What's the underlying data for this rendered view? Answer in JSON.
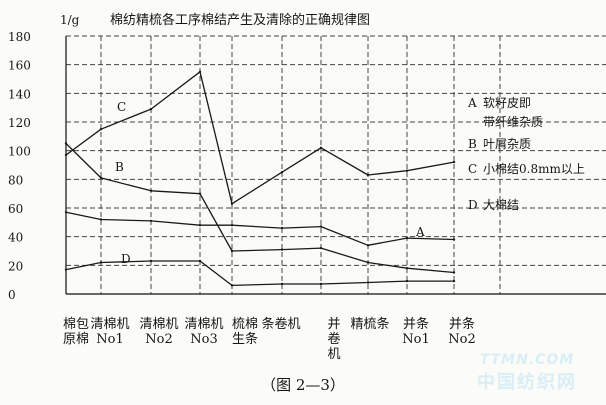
{
  "chart_data": {
    "type": "line",
    "title": "棉纺精梳各工序棉结产生及清除的正确规律图",
    "ylabel": "1/g",
    "yticks": [
      0,
      20,
      40,
      60,
      80,
      100,
      120,
      140,
      160,
      180
    ],
    "ylim": [
      0,
      180
    ],
    "grid": true,
    "categories": [
      [
        "棉包",
        "原棉"
      ],
      [
        "清棉机",
        "No1"
      ],
      [
        "清棉机",
        "No2"
      ],
      [
        "清棉机",
        "No3"
      ],
      [
        "梳棉",
        "生条"
      ],
      [
        "条卷机"
      ],
      [
        "并",
        "卷",
        "机"
      ],
      [
        "精梳条"
      ],
      [
        "并条",
        "No1"
      ],
      [
        "并条",
        "No2"
      ]
    ],
    "series": [
      {
        "name": "C",
        "values": [
          97,
          115,
          129,
          155,
          63,
          85,
          102,
          83,
          86,
          92
        ]
      },
      {
        "name": "B",
        "values": [
          105,
          81,
          72,
          70,
          30,
          31,
          32,
          22,
          18,
          15
        ]
      },
      {
        "name": "A",
        "values": [
          57,
          52,
          51,
          48,
          48,
          46,
          47,
          34,
          39,
          38
        ]
      },
      {
        "name": "D",
        "values": [
          17,
          22,
          23,
          23,
          6,
          7,
          7,
          8,
          9,
          9
        ]
      }
    ],
    "legend": [
      {
        "key": "A",
        "lines": [
          "软籽皮即",
          "带纤维杂质"
        ]
      },
      {
        "key": "B",
        "lines": [
          "叶屑杂质"
        ]
      },
      {
        "key": "C",
        "lines": [
          "小棉结0.8mm以上"
        ]
      },
      {
        "key": "D",
        "lines": [
          "大棉结"
        ]
      }
    ],
    "legend_position": "right"
  },
  "caption": "（图 2—3）",
  "watermark": {
    "line1": "TTMN.COM",
    "line2": "中国纺织网"
  }
}
